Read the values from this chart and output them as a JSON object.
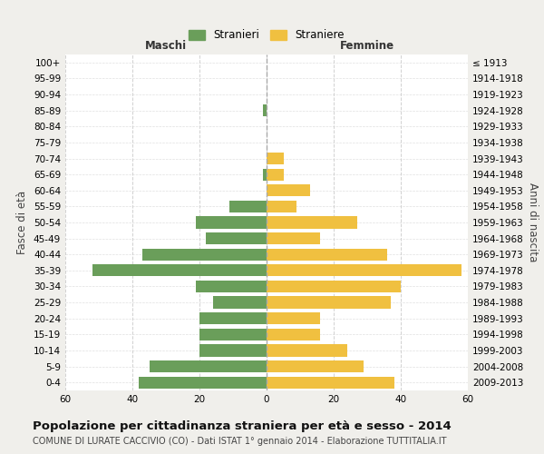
{
  "age_groups": [
    "0-4",
    "5-9",
    "10-14",
    "15-19",
    "20-24",
    "25-29",
    "30-34",
    "35-39",
    "40-44",
    "45-49",
    "50-54",
    "55-59",
    "60-64",
    "65-69",
    "70-74",
    "75-79",
    "80-84",
    "85-89",
    "90-94",
    "95-99",
    "100+"
  ],
  "birth_years": [
    "2009-2013",
    "2004-2008",
    "1999-2003",
    "1994-1998",
    "1989-1993",
    "1984-1988",
    "1979-1983",
    "1974-1978",
    "1969-1973",
    "1964-1968",
    "1959-1963",
    "1954-1958",
    "1949-1953",
    "1944-1948",
    "1939-1943",
    "1934-1938",
    "1929-1933",
    "1924-1928",
    "1919-1923",
    "1914-1918",
    "≤ 1913"
  ],
  "males": [
    38,
    35,
    20,
    20,
    20,
    16,
    21,
    52,
    37,
    18,
    21,
    11,
    0,
    1,
    0,
    0,
    0,
    1,
    0,
    0,
    0
  ],
  "females": [
    38,
    29,
    24,
    16,
    16,
    37,
    40,
    58,
    36,
    16,
    27,
    9,
    13,
    5,
    5,
    0,
    0,
    0,
    0,
    0,
    0
  ],
  "male_color": "#6a9e5a",
  "female_color": "#f0c040",
  "background_color": "#f0efeb",
  "plot_bg_color": "#ffffff",
  "title": "Popolazione per cittadinanza straniera per età e sesso - 2014",
  "subtitle": "COMUNE DI LURATE CACCIVIO (CO) - Dati ISTAT 1° gennaio 2014 - Elaborazione TUTTITALIA.IT",
  "xlabel_left": "Maschi",
  "xlabel_right": "Femmine",
  "ylabel_left": "Fasce di età",
  "ylabel_right": "Anni di nascita",
  "legend_male": "Stranieri",
  "legend_female": "Straniere",
  "xlim": 60,
  "grid_color": "#cccccc",
  "bar_height": 0.75,
  "title_fontsize": 9.5,
  "subtitle_fontsize": 7,
  "tick_fontsize": 7.5,
  "label_fontsize": 8.5
}
